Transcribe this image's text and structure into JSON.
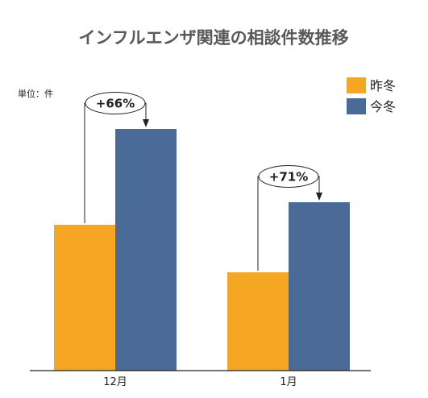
{
  "chart_data": {
    "type": "bar",
    "title": "インフルエンザ関連の相談件数推移",
    "unit_label": "単位：件",
    "categories": [
      "12月",
      "1月"
    ],
    "series": [
      {
        "name": "昨冬",
        "color": "#F5A623",
        "values": [
          181,
          122
        ]
      },
      {
        "name": "今冬",
        "color": "#4A6A98",
        "values": [
          300,
          209
        ]
      }
    ],
    "annotations": [
      "+66%",
      "+71%"
    ],
    "ylim": [
      0,
      310
    ],
    "legend_position": "top-right",
    "grid": false
  }
}
